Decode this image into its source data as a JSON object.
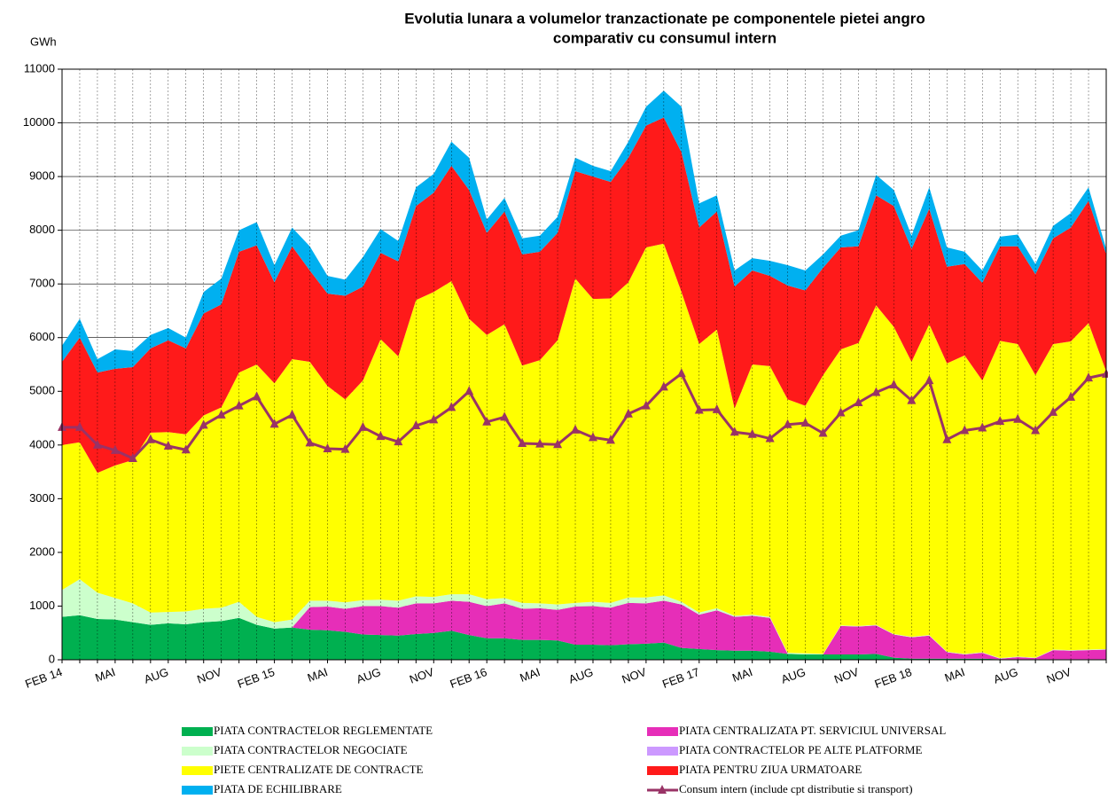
{
  "chart_data": {
    "type": "area",
    "title": [
      "Evolutia lunara a volumelor tranzactionate pe componentele pietei angro",
      "comparativ cu consumul intern"
    ],
    "y_label": "GWh",
    "categories": [
      "FEB 14",
      null,
      null,
      "MAI",
      null,
      null,
      "AUG",
      null,
      null,
      "NOV",
      null,
      null,
      "FEB 15",
      null,
      null,
      "MAI",
      null,
      null,
      "AUG",
      null,
      null,
      "NOV",
      null,
      null,
      "FEB 16",
      null,
      null,
      "MAI",
      null,
      null,
      "AUG",
      null,
      null,
      "NOV",
      null,
      null,
      "FEB 17",
      null,
      null,
      "MAI",
      null,
      null,
      "AUG",
      null,
      null,
      "NOV",
      null,
      null,
      "FEB 18",
      null,
      null,
      "MAI",
      null,
      null,
      "AUG",
      null,
      null,
      "NOV",
      null,
      null
    ],
    "ylim": [
      0,
      11000
    ],
    "yticks": [
      0,
      1000,
      2000,
      3000,
      4000,
      5000,
      6000,
      7000,
      8000,
      9000,
      10000,
      11000
    ],
    "grid": true,
    "stacked": true,
    "series": [
      {
        "name": "PIATA CONTRACTELOR REGLEMENTATE",
        "color": "#00b050",
        "values": [
          800,
          830,
          760,
          750,
          700,
          650,
          680,
          660,
          700,
          720,
          780,
          650,
          580,
          600,
          560,
          550,
          520,
          470,
          460,
          450,
          480,
          500,
          540,
          460,
          400,
          400,
          370,
          370,
          360,
          280,
          280,
          270,
          290,
          300,
          320,
          220,
          200,
          180,
          170,
          170,
          150,
          110,
          100,
          100,
          100,
          100,
          110,
          40,
          20,
          20,
          20,
          20,
          20,
          10,
          10,
          10,
          10,
          10,
          10,
          10
        ]
      },
      {
        "name": "PIATA CENTRALIZATA PT. SERVICIUL UNIVERSAL",
        "color": "#e62eb8",
        "values": [
          0,
          0,
          0,
          0,
          0,
          0,
          0,
          0,
          0,
          0,
          0,
          0,
          0,
          0,
          420,
          440,
          430,
          530,
          540,
          520,
          570,
          550,
          560,
          620,
          600,
          650,
          580,
          590,
          570,
          710,
          720,
          700,
          770,
          750,
          780,
          810,
          640,
          740,
          630,
          650,
          630,
          0,
          0,
          0,
          530,
          520,
          530,
          430,
          400,
          430,
          120,
          80,
          110,
          10,
          40,
          20,
          170,
          160,
          170,
          180
        ]
      },
      {
        "name": "PIATA CONTRACTELOR PE ALTE PLATFORME",
        "color": "#cc99ff",
        "values": [
          0,
          0,
          0,
          0,
          0,
          0,
          0,
          0,
          0,
          0,
          0,
          0,
          0,
          0,
          0,
          0,
          0,
          0,
          0,
          0,
          0,
          0,
          0,
          0,
          0,
          0,
          0,
          0,
          0,
          0,
          0,
          0,
          0,
          0,
          0,
          0,
          0,
          0,
          0,
          0,
          0,
          0,
          0,
          0,
          0,
          0,
          0,
          0,
          0,
          0,
          0,
          0,
          0,
          0,
          0,
          0,
          0,
          0,
          0,
          0
        ]
      },
      {
        "name": "PIATA CONTRACTELOR NEGOCIATE",
        "color": "#ccffcc",
        "values": [
          500,
          670,
          490,
          400,
          350,
          230,
          210,
          240,
          250,
          250,
          300,
          150,
          120,
          150,
          120,
          110,
          120,
          110,
          120,
          130,
          130,
          120,
          120,
          140,
          130,
          100,
          110,
          90,
          100,
          70,
          80,
          90,
          100,
          110,
          100,
          50,
          40,
          40,
          20,
          20,
          20,
          20,
          20,
          10,
          10,
          10,
          10,
          10,
          10,
          10,
          10,
          10,
          10,
          10,
          10,
          10,
          10,
          10,
          10,
          10
        ]
      },
      {
        "name": "PIETE CENTRALIZATE DE CONTRACTE",
        "color": "#ffff00",
        "values": [
          2700,
          2550,
          2230,
          2470,
          2670,
          3350,
          3350,
          3300,
          3600,
          3730,
          4270,
          4700,
          4450,
          4850,
          4450,
          4000,
          3780,
          4090,
          4850,
          4550,
          5520,
          5680,
          5830,
          5130,
          4920,
          5100,
          4420,
          4530,
          4920,
          6040,
          5640,
          5670,
          5870,
          6520,
          6550,
          5770,
          5000,
          5190,
          3860,
          4660,
          4670,
          4720,
          4610,
          5190,
          5140,
          5270,
          5950,
          5720,
          5120,
          5790,
          5370,
          5560,
          5060,
          5910,
          5820,
          5260,
          5690,
          5750,
          6080,
          5170
        ]
      },
      {
        "name": "PIATA PENTRU ZIUA URMATOARE",
        "color": "#ff1a1a",
        "values": [
          1550,
          1950,
          1870,
          1800,
          1730,
          1570,
          1710,
          1600,
          1900,
          1920,
          2250,
          2220,
          1880,
          2100,
          1700,
          1720,
          1930,
          1750,
          1610,
          1770,
          1750,
          1850,
          2150,
          2400,
          1900,
          2100,
          2070,
          2020,
          2000,
          2000,
          2280,
          2170,
          2320,
          2270,
          2350,
          2600,
          2170,
          2200,
          2270,
          1750,
          1680,
          2120,
          2150,
          2000,
          1900,
          1800,
          2050,
          2250,
          2100,
          2150,
          1800,
          1700,
          1820,
          1760,
          1820,
          1880,
          1970,
          2120,
          2280,
          2180
        ]
      },
      {
        "name": "PIATA DE ECHILIBRARE",
        "color": "#00b0f0",
        "values": [
          300,
          350,
          250,
          360,
          300,
          250,
          230,
          200,
          400,
          480,
          400,
          430,
          320,
          350,
          450,
          330,
          300,
          550,
          440,
          380,
          350,
          350,
          450,
          600,
          250,
          250,
          300,
          300,
          300,
          250,
          200,
          200,
          300,
          350,
          500,
          850,
          450,
          300,
          300,
          230,
          280,
          380,
          370,
          250,
          220,
          300,
          380,
          300,
          250,
          400,
          360,
          230,
          230,
          180,
          220,
          190,
          230,
          270,
          250,
          100
        ]
      },
      {
        "name": "Consum intern (include cpt distributie si transport)",
        "type": "line",
        "color": "#993366",
        "values": [
          4330,
          4330,
          4000,
          3900,
          3750,
          4100,
          3980,
          3910,
          4370,
          4560,
          4730,
          4900,
          4390,
          4560,
          4040,
          3930,
          3920,
          4330,
          4160,
          4060,
          4360,
          4470,
          4700,
          5000,
          4430,
          4520,
          4030,
          4020,
          4010,
          4280,
          4140,
          4090,
          4580,
          4730,
          5080,
          5330,
          4650,
          4660,
          4240,
          4200,
          4120,
          4380,
          4410,
          4220,
          4600,
          4790,
          4980,
          5120,
          4830,
          5200,
          4100,
          4270,
          4320,
          4440,
          4480,
          4270,
          4610,
          4890,
          5250,
          5320
        ]
      }
    ]
  }
}
